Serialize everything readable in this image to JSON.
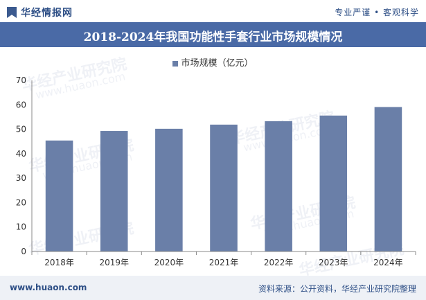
{
  "header": {
    "logo_text": "华经情报网",
    "slogan": "专业严谨 • 客观科学"
  },
  "title": "2018-2024年我国功能性手套行业市场规模情况",
  "legend": {
    "label": "市场规模（亿元）"
  },
  "watermark": {
    "text": "华经产业研究院",
    "sub": "www.huaon.com"
  },
  "footer": {
    "website": "www.huaon.com",
    "source": "资料来源：公开资料，华经产业研究院整理"
  },
  "colors": {
    "bar": "#6a7fa8",
    "title_bg": "#4a6aa6",
    "accent": "#2e4f86"
  },
  "chart_data": {
    "type": "bar",
    "title": "2018-2024年我国功能性手套行业市场规模情况",
    "categories": [
      "2018年",
      "2019年",
      "2020年",
      "2021年",
      "2022年",
      "2023年",
      "2024年"
    ],
    "series": [
      {
        "name": "市场规模（亿元）",
        "values": [
          45.4,
          49.3,
          50.2,
          51.9,
          53.3,
          55.6,
          59.1
        ]
      }
    ],
    "xlabel": "",
    "ylabel": "",
    "ylim": [
      0,
      70
    ],
    "yticks": [
      0,
      10,
      20,
      30,
      40,
      50,
      60,
      70
    ],
    "grid": false,
    "legend_position": "top-center"
  }
}
